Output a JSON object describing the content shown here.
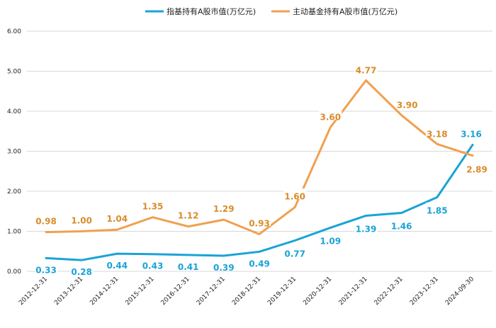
{
  "chart_data": {
    "type": "line",
    "title": "",
    "xlabel": "",
    "ylabel": "",
    "ylim": [
      0,
      6
    ],
    "y_ticks": [
      "0.00",
      "1.00",
      "2.00",
      "3.00",
      "4.00",
      "5.00",
      "6.00"
    ],
    "grid": true,
    "legend_position": "top",
    "categories": [
      "2012-12-31",
      "2013-12-31",
      "2014-12-31",
      "2015-12-31",
      "2016-12-31",
      "2017-12-31",
      "2018-12-31",
      "2019-12-31",
      "2020-12-31",
      "2021-12-31",
      "2022-12-31",
      "2023-12-31",
      "2024-09-30"
    ],
    "series": [
      {
        "name": "指基持有A股市值(万亿元)",
        "color": "#1AA3D6",
        "label_color": "#1AA3D6",
        "values": [
          0.33,
          0.28,
          0.44,
          0.43,
          0.41,
          0.39,
          0.49,
          0.77,
          1.09,
          1.39,
          1.46,
          1.85,
          3.16
        ],
        "labels": [
          "0.33",
          "0.28",
          "0.44",
          "0.43",
          "0.41",
          "0.39",
          "0.49",
          "0.77",
          "1.09",
          "1.39",
          "1.46",
          "1.85",
          "3.16"
        ]
      },
      {
        "name": "主动基金持有A股市值(万亿元)",
        "color": "#F0A050",
        "label_color": "#D98C2B",
        "values": [
          0.98,
          1.0,
          1.04,
          1.35,
          1.12,
          1.29,
          0.93,
          1.6,
          3.6,
          4.77,
          3.9,
          3.18,
          2.89
        ],
        "labels": [
          "0.98",
          "1.00",
          "1.04",
          "1.35",
          "1.12",
          "1.29",
          "0.93",
          "1.60",
          "3.60",
          "4.77",
          "3.90",
          "3.18",
          "2.89"
        ]
      }
    ]
  }
}
